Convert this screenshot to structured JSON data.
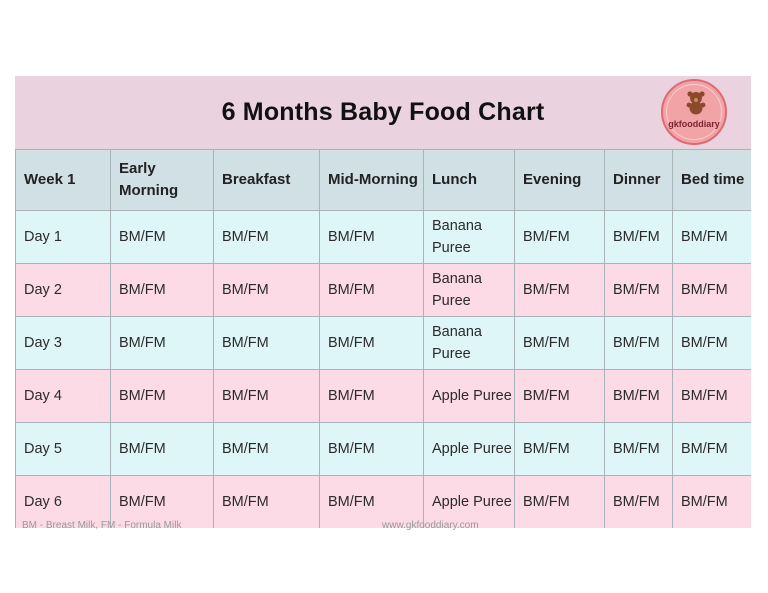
{
  "title": "6 Months Baby Food Chart",
  "logo": {
    "text": "gkfooddiary",
    "icon": "teddy-bear-icon",
    "color": "#f1a3a6"
  },
  "table": {
    "headers": [
      "Week 1",
      "Early Morning",
      "Breakfast",
      "Mid-Morning",
      "Lunch",
      "Evening",
      "Dinner",
      "Bed time"
    ],
    "rows": [
      [
        "Day 1",
        "BM/FM",
        "BM/FM",
        "BM/FM",
        "Banana Puree",
        "BM/FM",
        "BM/FM",
        "BM/FM"
      ],
      [
        "Day 2",
        "BM/FM",
        "BM/FM",
        "BM/FM",
        "Banana Puree",
        "BM/FM",
        "BM/FM",
        "BM/FM"
      ],
      [
        "Day 3",
        "BM/FM",
        "BM/FM",
        "BM/FM",
        "Banana Puree",
        "BM/FM",
        "BM/FM",
        "BM/FM"
      ],
      [
        "Day 4",
        "BM/FM",
        "BM/FM",
        "BM/FM",
        "Apple Puree",
        "BM/FM",
        "BM/FM",
        "BM/FM"
      ],
      [
        "Day 5",
        "BM/FM",
        "BM/FM",
        "BM/FM",
        "Apple Puree",
        "BM/FM",
        "BM/FM",
        "BM/FM"
      ],
      [
        "Day 6",
        "BM/FM",
        "BM/FM",
        "BM/FM",
        "Apple Puree",
        "BM/FM",
        "BM/FM",
        "BM/FM"
      ]
    ]
  },
  "footer": {
    "legend": "BM - Breast Milk, FM - Formula Milk",
    "website": "www.gkfooddiary.com"
  },
  "colors": {
    "header_band": "#ead2df",
    "header_row": "#d0e0e4",
    "row_blue": "#def6f8",
    "row_pink": "#fcdbe6"
  }
}
